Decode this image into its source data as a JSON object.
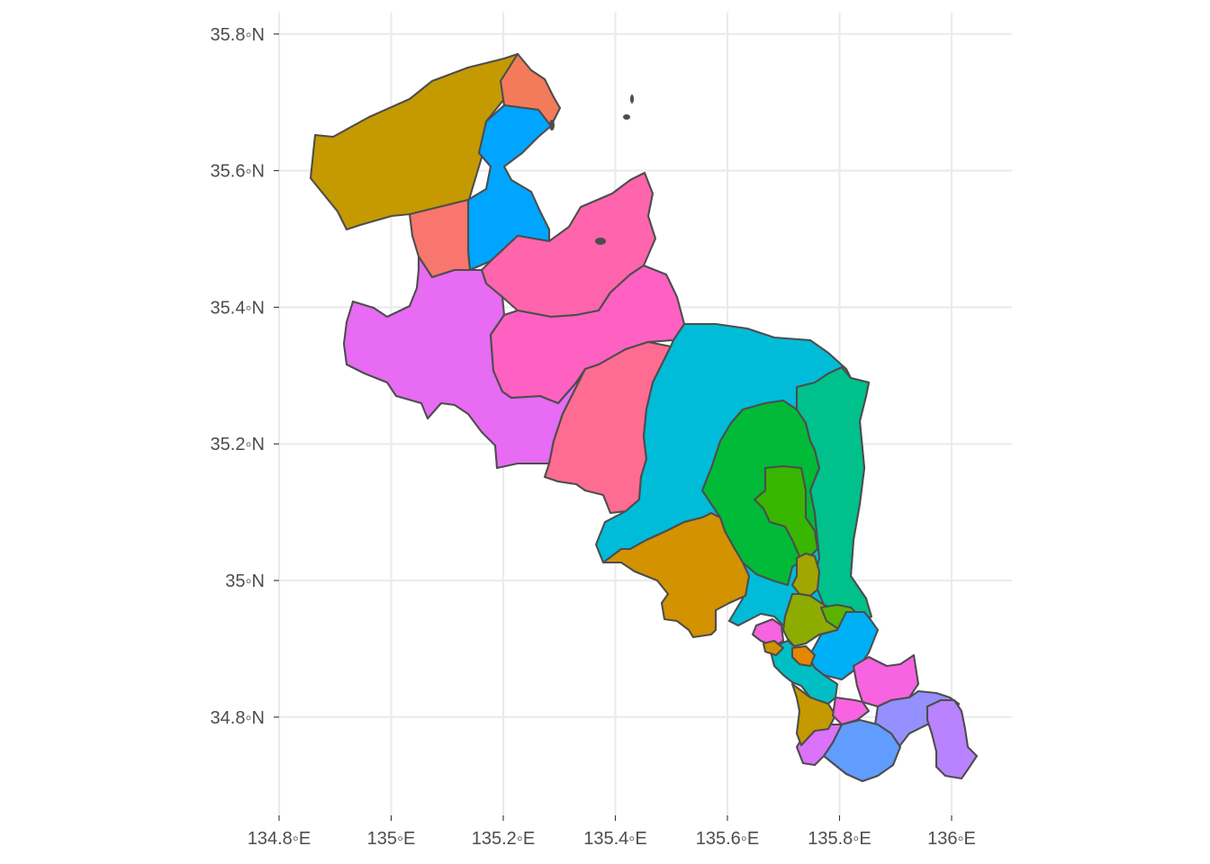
{
  "chart_data": {
    "type": "choropleth-map",
    "x_axis": {
      "ticks": [
        {
          "value": 134.8,
          "label": "134.8◦E"
        },
        {
          "value": 135.0,
          "label": "135◦E"
        },
        {
          "value": 135.2,
          "label": "135.2◦E"
        },
        {
          "value": 135.4,
          "label": "135.4◦E"
        },
        {
          "value": 135.6,
          "label": "135.6◦E"
        },
        {
          "value": 135.8,
          "label": "135.8◦E"
        },
        {
          "value": 136.0,
          "label": "136◦E"
        }
      ],
      "range": [
        134.8,
        136.1
      ]
    },
    "y_axis": {
      "ticks": [
        {
          "value": 34.8,
          "label": "34.8◦N"
        },
        {
          "value": 35.0,
          "label": "35◦N"
        },
        {
          "value": 35.2,
          "label": "35.2◦N"
        },
        {
          "value": 35.4,
          "label": "35.4◦N"
        },
        {
          "value": 35.6,
          "label": "35.6◦N"
        },
        {
          "value": 35.8,
          "label": "35.8◦N"
        }
      ],
      "range": [
        34.68,
        35.83
      ]
    },
    "grid": true,
    "legend": "none",
    "region_colors": [
      "#C49A00",
      "#F37B59",
      "#00A5FF",
      "#F8766D",
      "#FF65AC",
      "#E76BF3",
      "#FF61C3",
      "#FF6C91",
      "#00BCD8",
      "#00BA38",
      "#00C08B",
      "#39B600",
      "#D39200",
      "#A3A500",
      "#8EAB00",
      "#5BB300",
      "#00B0F6",
      "#F763E0",
      "#9590FF",
      "#619CFF",
      "#DB72FB",
      "#B983FF",
      "#00BFC4",
      "#E58700"
    ]
  }
}
